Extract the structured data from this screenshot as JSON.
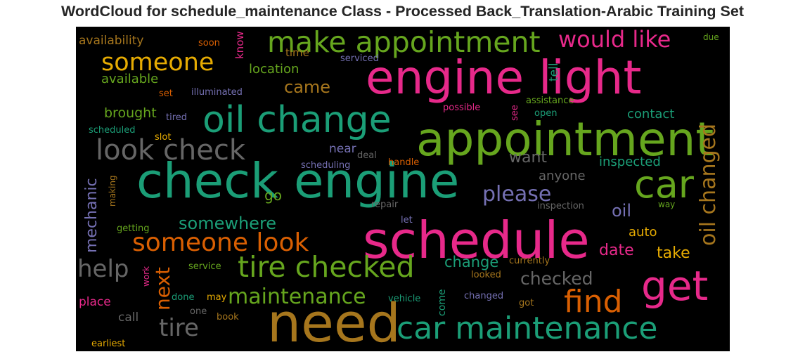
{
  "title": "WordCloud for schedule_maintenance Class - Processed Back_Translation-Arabic Training Set",
  "palette": [
    "#e7298a",
    "#66a61e",
    "#1b9e77",
    "#d95f02",
    "#e6ab02",
    "#a6761d",
    "#7570b3",
    "#666666"
  ],
  "words": [
    "engine light",
    "appointment",
    "check engine",
    "schedule",
    "oil change",
    "need",
    "make appointment",
    "car maintenance",
    "get",
    "car",
    "tire checked",
    "look check",
    "someone",
    "someone look",
    "find",
    "would like",
    "oil changed",
    "help",
    "tire",
    "maintenance",
    "please",
    "next",
    "checked",
    "came",
    "somewhere",
    "mechanic",
    "date",
    "take",
    "change",
    "want",
    "contact",
    "brought",
    "location",
    "available",
    "oil",
    "inspected",
    "anyone",
    "go",
    "auto",
    "near",
    "place",
    "availability",
    "call",
    "time",
    "tell",
    "know",
    "soon",
    "illuminated",
    "serviced",
    "assistance",
    "open",
    "possible",
    "see",
    "set",
    "tired",
    "slot",
    "scheduled",
    "due",
    "deal",
    "scheduling",
    "handle",
    "repair",
    "inspection",
    "way",
    "getting",
    "making",
    "let",
    "service",
    "currently",
    "looked",
    "work",
    "done",
    "may",
    "come",
    "vehicle",
    "changed",
    "got",
    "one",
    "book",
    "earliest"
  ]
}
